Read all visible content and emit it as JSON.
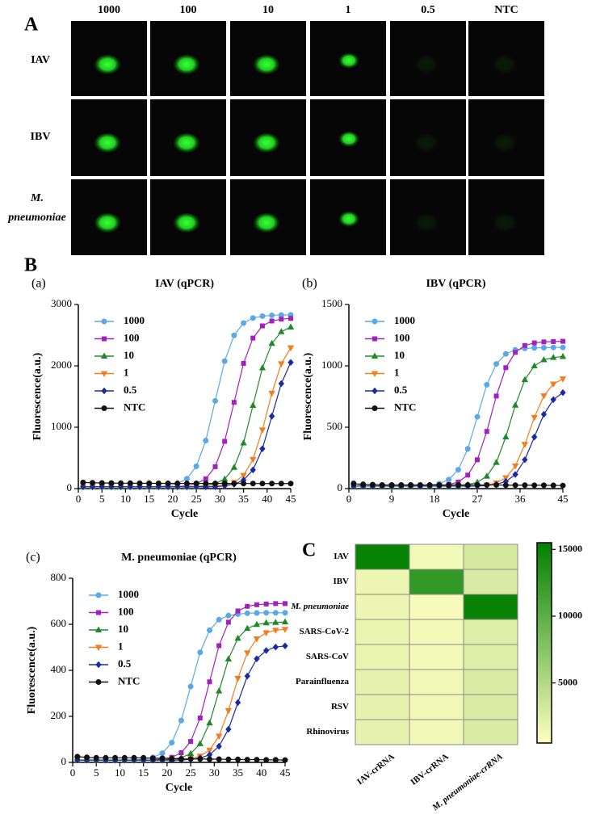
{
  "panel_a": {
    "label": "A",
    "columns": [
      "1000",
      "100",
      "10",
      "1",
      "0.5",
      "NTC"
    ],
    "rows": [
      "IAV",
      "IBV",
      "M. pneumoniae"
    ]
  },
  "panel_b": {
    "label": "B"
  },
  "chart_data": [
    {
      "type": "line",
      "panel": "(a)",
      "title": "IAV (qPCR)",
      "xlabel": "Cycle",
      "ylabel": "Fluorescence(a.u.)",
      "x": [
        1,
        3,
        5,
        7,
        9,
        11,
        13,
        15,
        17,
        19,
        21,
        23,
        25,
        27,
        29,
        31,
        33,
        35,
        37,
        39,
        41,
        43,
        45
      ],
      "xlim": [
        0,
        45
      ],
      "xticks": [
        0,
        5,
        10,
        15,
        20,
        25,
        30,
        35,
        40,
        45
      ],
      "ylim": [
        0,
        3000
      ],
      "yticks": [
        0,
        1000,
        2000,
        3000
      ],
      "legend": "upper left",
      "series": [
        {
          "name": "1000",
          "color": "#5aa9e6",
          "marker": "circle",
          "values": [
            30,
            30,
            30,
            30,
            30,
            30,
            30,
            30,
            30,
            49,
            80,
            162,
            363,
            783,
            1430,
            2077,
            2497,
            2698,
            2779,
            2810,
            2823,
            2828,
            2830
          ]
        },
        {
          "name": "100",
          "color": "#a020c0",
          "marker": "square",
          "values": [
            30,
            30,
            30,
            30,
            30,
            30,
            30,
            30,
            30,
            30,
            30,
            48,
            80,
            159,
            357,
            770,
            1405,
            2040,
            2453,
            2651,
            2731,
            2761,
            2773
          ]
        },
        {
          "name": "10",
          "color": "#20882b",
          "marker": "triangle",
          "values": [
            30,
            30,
            30,
            30,
            30,
            30,
            30,
            30,
            30,
            30,
            30,
            30,
            30,
            48,
            78,
            155,
            345,
            743,
            1355,
            1967,
            2365,
            2556,
            2632
          ]
        },
        {
          "name": "1",
          "color": "#f07d20",
          "marker": "triangle-down",
          "values": [
            30,
            30,
            30,
            30,
            30,
            30,
            30,
            30,
            30,
            30,
            30,
            30,
            30,
            30,
            40,
            57,
            101,
            216,
            476,
            956,
            1554,
            2034,
            2294
          ]
        },
        {
          "name": "0.5",
          "color": "#1a2aa0",
          "marker": "diamond",
          "values": [
            30,
            30,
            30,
            30,
            30,
            30,
            30,
            30,
            30,
            30,
            30,
            30,
            30,
            30,
            30,
            45,
            71,
            138,
            304,
            649,
            1180,
            1711,
            2056
          ]
        },
        {
          "name": "NTC",
          "color": "#111111",
          "marker": "circle",
          "values": [
            100,
            95,
            92,
            90,
            88,
            88,
            87,
            87,
            86,
            86,
            85,
            85,
            85,
            84,
            84,
            84,
            83,
            83,
            83,
            82,
            82,
            82,
            82
          ]
        }
      ]
    },
    {
      "type": "line",
      "panel": "(b)",
      "title": "IBV (qPCR)",
      "xlabel": "Cycle",
      "ylabel": "Fluorescence(a.u.)",
      "x": [
        1,
        3,
        5,
        7,
        9,
        11,
        13,
        15,
        17,
        19,
        21,
        23,
        25,
        27,
        29,
        31,
        33,
        35,
        37,
        39,
        41,
        43,
        45
      ],
      "xlim": [
        0,
        45
      ],
      "xticks": [
        0,
        9,
        18,
        27,
        36,
        45
      ],
      "ylim": [
        0,
        1500
      ],
      "yticks": [
        0,
        500,
        1000,
        1500
      ],
      "legend": "upper left",
      "series": [
        {
          "name": "1000",
          "color": "#5aa9e6",
          "marker": "circle",
          "values": [
            45,
            20,
            20,
            20,
            20,
            20,
            20,
            20,
            28,
            40,
            73,
            154,
            324,
            585,
            846,
            1016,
            1097,
            1130,
            1142,
            1146,
            1148,
            1150,
            1150
          ]
        },
        {
          "name": "100",
          "color": "#a020c0",
          "marker": "square",
          "values": [
            20,
            20,
            20,
            20,
            20,
            20,
            20,
            20,
            20,
            20,
            33,
            54,
            110,
            235,
            466,
            754,
            985,
            1110,
            1166,
            1187,
            1195,
            1198,
            1200
          ]
        },
        {
          "name": "10",
          "color": "#20882b",
          "marker": "triangle",
          "values": [
            20,
            20,
            20,
            20,
            20,
            20,
            20,
            20,
            20,
            20,
            20,
            20,
            32,
            51,
            101,
            213,
            421,
            679,
            887,
            999,
            1049,
            1068,
            1076
          ]
        },
        {
          "name": "1",
          "color": "#f07d20",
          "marker": "triangle-down",
          "values": [
            20,
            20,
            20,
            20,
            20,
            20,
            20,
            20,
            20,
            20,
            20,
            20,
            20,
            20,
            30,
            46,
            88,
            184,
            360,
            580,
            756,
            852,
            894
          ]
        },
        {
          "name": "0.5",
          "color": "#1a2aa0",
          "marker": "diamond",
          "values": [
            20,
            20,
            20,
            20,
            20,
            20,
            20,
            20,
            20,
            20,
            20,
            20,
            20,
            20,
            25,
            34,
            58,
            115,
            235,
            420,
            605,
            725,
            782
          ]
        },
        {
          "name": "NTC",
          "color": "#111111",
          "marker": "circle",
          "values": [
            40,
            35,
            32,
            30,
            30,
            30,
            30,
            30,
            30,
            30,
            30,
            30,
            30,
            30,
            30,
            30,
            28,
            28,
            28,
            27,
            27,
            26,
            25
          ]
        }
      ]
    },
    {
      "type": "line",
      "panel": "(c)",
      "title": "M. pneumoniae (qPCR)",
      "xlabel": "Cycle",
      "ylabel": "Fluorescence(a.u.)",
      "x": [
        1,
        3,
        5,
        7,
        9,
        11,
        13,
        15,
        17,
        19,
        21,
        23,
        25,
        27,
        29,
        31,
        33,
        35,
        37,
        39,
        41,
        43,
        45
      ],
      "xlim": [
        0,
        45
      ],
      "xticks": [
        0,
        5,
        10,
        15,
        20,
        25,
        30,
        35,
        40,
        45
      ],
      "ylim": [
        0,
        800
      ],
      "yticks": [
        0,
        200,
        400,
        600,
        800
      ],
      "legend": "upper left",
      "series": [
        {
          "name": "1000",
          "color": "#5aa9e6",
          "marker": "circle",
          "values": [
            10,
            10,
            10,
            10,
            10,
            10,
            10,
            14,
            22,
            40,
            86,
            182,
            330,
            478,
            574,
            620,
            638,
            644,
            648,
            649,
            650,
            650,
            650
          ]
        },
        {
          "name": "100",
          "color": "#a020c0",
          "marker": "square",
          "values": [
            10,
            10,
            10,
            10,
            10,
            10,
            10,
            10,
            10,
            15,
            22,
            42,
            91,
            193,
            350,
            507,
            609,
            658,
            678,
            685,
            688,
            690,
            690
          ]
        },
        {
          "name": "10",
          "color": "#20882b",
          "marker": "triangle",
          "values": [
            10,
            10,
            10,
            10,
            10,
            10,
            10,
            10,
            10,
            10,
            14,
            21,
            38,
            81,
            171,
            310,
            449,
            539,
            582,
            599,
            606,
            608,
            610
          ]
        },
        {
          "name": "1",
          "color": "#f07d20",
          "marker": "triangle-down",
          "values": [
            10,
            10,
            10,
            10,
            10,
            10,
            10,
            10,
            10,
            10,
            10,
            10,
            16,
            27,
            53,
            114,
            225,
            365,
            476,
            537,
            563,
            574,
            578
          ]
        },
        {
          "name": "0.5",
          "color": "#1a2aa0",
          "marker": "diamond",
          "values": [
            10,
            10,
            10,
            10,
            10,
            10,
            10,
            10,
            10,
            10,
            10,
            10,
            13,
            19,
            33,
            70,
            144,
            260,
            375,
            450,
            486,
            501,
            506
          ]
        },
        {
          "name": "NTC",
          "color": "#111111",
          "marker": "circle",
          "values": [
            25,
            22,
            20,
            20,
            20,
            20,
            20,
            20,
            18,
            18,
            16,
            15,
            15,
            15,
            14,
            14,
            13,
            13,
            12,
            12,
            11,
            11,
            10
          ]
        }
      ]
    },
    {
      "type": "heatmap",
      "panel": "C",
      "rows": [
        "IAV",
        "IBV",
        "M. pneumoniae",
        "SARS-CoV-2",
        "SARS-CoV",
        "Parainfluenza",
        "RSV",
        "Rhinovirus"
      ],
      "columns": [
        "IAV-crRNA",
        "IBV-crRNA",
        "M. pneumoniae-crRNA"
      ],
      "values": [
        [
          15000,
          1200,
          3000
        ],
        [
          1500,
          12500,
          2800
        ],
        [
          1500,
          1000,
          15000
        ],
        [
          1800,
          1200,
          2500
        ],
        [
          1800,
          1200,
          2500
        ],
        [
          2000,
          1300,
          2700
        ],
        [
          2000,
          1300,
          2700
        ],
        [
          2000,
          1300,
          2700
        ]
      ],
      "colormap": [
        "#ffffc0",
        "#007f00"
      ],
      "zlim": [
        500,
        15500
      ],
      "zticks": [
        5000,
        10000,
        15000
      ]
    }
  ]
}
